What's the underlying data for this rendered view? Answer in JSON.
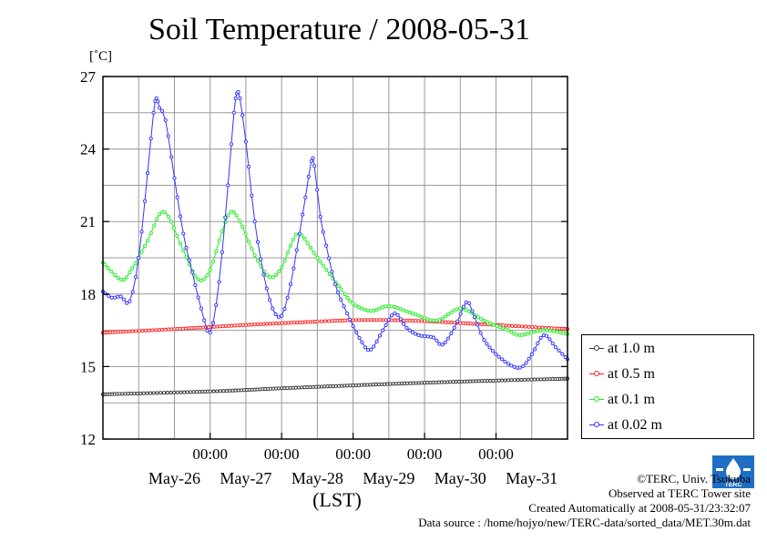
{
  "page": {
    "title": "Soil Temperature / 2008-05-31",
    "unit_label": "[˚C]",
    "credits": [
      "©TERC, Univ. Tsukuba",
      "Observed at TERC Tower site",
      "Created Automatically at 2008-05-31/23:32:07",
      "Data source : /home/hojyo/new/TERC-data/sorted_data/MET.30m.dat"
    ],
    "logo_text": "TERC"
  },
  "chart_data": {
    "type": "line",
    "title": "Soil Temperature / 2008-05-31",
    "xlabel": "(LST)",
    "ylabel": "[˚C]",
    "xlim": [
      "2008-05-25 12:00",
      "2008-05-31 24:00"
    ],
    "ylim": [
      12,
      27
    ],
    "yticks": [
      12,
      15,
      18,
      21,
      24,
      27
    ],
    "xtick_times": [
      "00:00",
      "00:00",
      "00:00",
      "00:00",
      "00:00"
    ],
    "xtick_dates": [
      "May-26",
      "May-27",
      "May-28",
      "May-29",
      "May-30",
      "May-31"
    ],
    "grid": true,
    "legend_position": "right",
    "series": [
      {
        "name": "at 1.0 m",
        "color": "#333333",
        "points": [
          [
            "2008-05-25 12:00",
            13.85
          ],
          [
            "2008-05-27 00:00",
            13.97
          ],
          [
            "2008-05-28 00:00",
            14.1
          ],
          [
            "2008-05-29 00:00",
            14.22
          ],
          [
            "2008-05-30 00:00",
            14.33
          ],
          [
            "2008-05-31 00:00",
            14.42
          ],
          [
            "2008-05-31 24:00",
            14.5
          ]
        ]
      },
      {
        "name": "at 0.5 m",
        "color": "#ff2020",
        "points": [
          [
            "2008-05-25 12:00",
            16.4
          ],
          [
            "2008-05-26 12:00",
            16.55
          ],
          [
            "2008-05-27 12:00",
            16.72
          ],
          [
            "2008-05-28 12:00",
            16.86
          ],
          [
            "2008-05-29 00:00",
            16.92
          ],
          [
            "2008-05-29 12:00",
            16.92
          ],
          [
            "2008-05-30 00:00",
            16.88
          ],
          [
            "2008-05-30 12:00",
            16.8
          ],
          [
            "2008-05-31 00:00",
            16.72
          ],
          [
            "2008-05-31 24:00",
            16.55
          ]
        ]
      },
      {
        "name": "at 0.1 m",
        "color": "#22ee22",
        "points": [
          [
            "2008-05-25 12:00",
            19.3
          ],
          [
            "2008-05-25 18:00",
            18.6
          ],
          [
            "2008-05-25 21:00",
            18.9
          ],
          [
            "2008-05-26 03:00",
            20.2
          ],
          [
            "2008-05-26 07:00",
            21.3
          ],
          [
            "2008-05-26 10:00",
            21.2
          ],
          [
            "2008-05-26 15:00",
            19.8
          ],
          [
            "2008-05-26 20:00",
            18.6
          ],
          [
            "2008-05-27 00:00",
            19.0
          ],
          [
            "2008-05-27 04:00",
            20.6
          ],
          [
            "2008-05-27 07:00",
            21.4
          ],
          [
            "2008-05-27 10:00",
            21.0
          ],
          [
            "2008-05-27 15:00",
            19.6
          ],
          [
            "2008-05-27 20:00",
            18.7
          ],
          [
            "2008-05-28 00:00",
            19.1
          ],
          [
            "2008-05-28 03:00",
            20.0
          ],
          [
            "2008-05-28 06:00",
            20.5
          ],
          [
            "2008-05-28 12:00",
            19.5
          ],
          [
            "2008-05-28 20:00",
            18.2
          ],
          [
            "2008-05-29 00:00",
            17.6
          ],
          [
            "2008-05-29 06:00",
            17.3
          ],
          [
            "2008-05-29 12:00",
            17.5
          ],
          [
            "2008-05-29 20:00",
            17.2
          ],
          [
            "2008-05-30 04:00",
            16.9
          ],
          [
            "2008-05-30 12:00",
            17.4
          ],
          [
            "2008-05-30 20:00",
            16.9
          ],
          [
            "2008-05-31 04:00",
            16.5
          ],
          [
            "2008-05-31 08:00",
            16.3
          ],
          [
            "2008-05-31 16:00",
            16.5
          ],
          [
            "2008-05-31 24:00",
            16.35
          ]
        ]
      },
      {
        "name": "at 0.02 m",
        "color": "#3333ff",
        "points": [
          [
            "2008-05-25 12:00",
            18.1
          ],
          [
            "2008-05-25 15:00",
            17.85
          ],
          [
            "2008-05-25 18:00",
            17.9
          ],
          [
            "2008-05-25 21:00",
            17.7
          ],
          [
            "2008-05-26 00:00",
            19.5
          ],
          [
            "2008-05-26 03:00",
            23.0
          ],
          [
            "2008-05-26 05:00",
            25.5
          ],
          [
            "2008-05-26 06:00",
            26.1
          ],
          [
            "2008-05-26 07:00",
            25.7
          ],
          [
            "2008-05-26 09:00",
            25.2
          ],
          [
            "2008-05-26 12:00",
            22.8
          ],
          [
            "2008-05-26 15:00",
            20.5
          ],
          [
            "2008-05-26 18:00",
            18.9
          ],
          [
            "2008-05-26 21:00",
            17.4
          ],
          [
            "2008-05-27 00:00",
            16.4
          ],
          [
            "2008-05-27 03:00",
            18.5
          ],
          [
            "2008-05-27 06:00",
            22.5
          ],
          [
            "2008-05-27 08:00",
            25.5
          ],
          [
            "2008-05-27 09:00",
            26.3
          ],
          [
            "2008-05-27 10:00",
            26.1
          ],
          [
            "2008-05-27 12:00",
            24.3
          ],
          [
            "2008-05-27 15:00",
            21.0
          ],
          [
            "2008-05-27 18:00",
            18.8
          ],
          [
            "2008-05-27 21:00",
            17.4
          ],
          [
            "2008-05-28 00:00",
            17.1
          ],
          [
            "2008-05-28 03:00",
            18.4
          ],
          [
            "2008-05-28 06:00",
            20.5
          ],
          [
            "2008-05-28 08:00",
            22.0
          ],
          [
            "2008-05-28 10:00",
            23.5
          ],
          [
            "2008-05-28 11:00",
            23.3
          ],
          [
            "2008-05-28 13:00",
            21.2
          ],
          [
            "2008-05-28 15:00",
            20.0
          ],
          [
            "2008-05-28 18:00",
            18.4
          ],
          [
            "2008-05-28 22:00",
            17.2
          ],
          [
            "2008-05-29 03:00",
            16.0
          ],
          [
            "2008-05-29 06:00",
            15.7
          ],
          [
            "2008-05-29 10:00",
            16.5
          ],
          [
            "2008-05-29 14:00",
            17.2
          ],
          [
            "2008-05-29 18:00",
            16.6
          ],
          [
            "2008-05-29 22:00",
            16.3
          ],
          [
            "2008-05-30 03:00",
            16.2
          ],
          [
            "2008-05-30 06:00",
            15.9
          ],
          [
            "2008-05-30 10:00",
            16.6
          ],
          [
            "2008-05-30 14:00",
            17.65
          ],
          [
            "2008-05-30 16:00",
            17.3
          ],
          [
            "2008-05-30 20:00",
            16.1
          ],
          [
            "2008-05-31 02:00",
            15.3
          ],
          [
            "2008-05-31 08:00",
            14.95
          ],
          [
            "2008-05-31 12:00",
            15.5
          ],
          [
            "2008-05-31 16:00",
            16.3
          ],
          [
            "2008-05-31 20:00",
            15.8
          ],
          [
            "2008-05-31 24:00",
            15.3
          ]
        ]
      }
    ]
  }
}
